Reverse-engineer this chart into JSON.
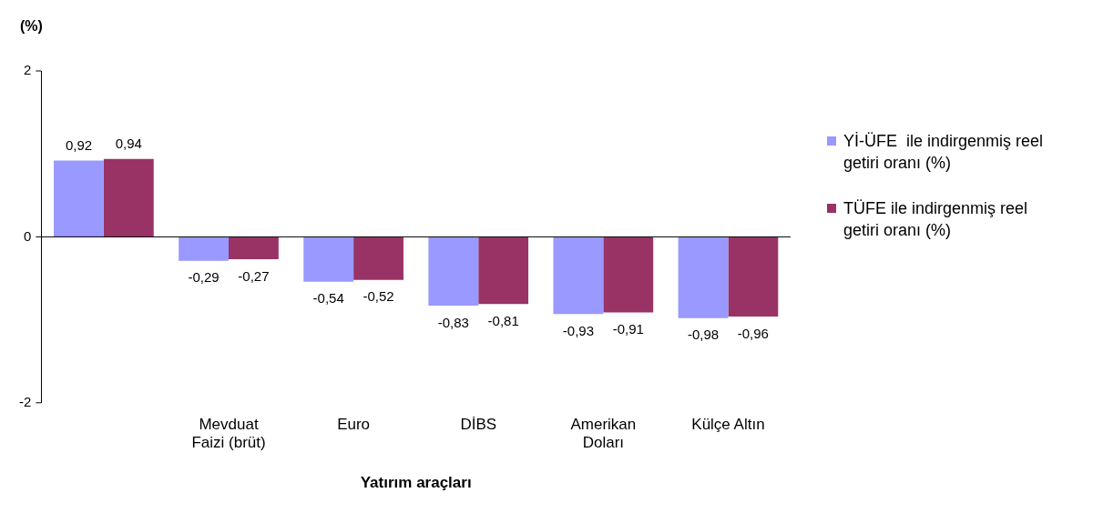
{
  "chart_data": {
    "type": "bar",
    "ylabel": "(%)",
    "xlabel": "Yatırım araçları",
    "categories": [
      null,
      "Mevduat Faizi (brüt)",
      "Euro",
      "DİBS",
      "Amerikan Doları",
      "Külçe Altın"
    ],
    "series": [
      {
        "name": "Yİ-ÜFE  ile indirgenmiş reel getiri oranı (%)",
        "color": "#9999ff",
        "values": [
          0.92,
          -0.29,
          -0.54,
          -0.83,
          -0.93,
          -0.98
        ],
        "value_labels": [
          "0,92",
          "-0,29",
          "-0,54",
          "-0,83",
          "-0,93",
          "-0,98"
        ]
      },
      {
        "name": "TÜFE ile indirgenmiş reel getiri oranı (%)",
        "color": "#993366",
        "values": [
          0.94,
          -0.27,
          -0.52,
          -0.81,
          -0.91,
          -0.96
        ],
        "value_labels": [
          "0,94",
          "-0,27",
          "-0,52",
          "-0,81",
          "-0,91",
          "-0,96"
        ]
      }
    ],
    "ylim": [
      -2,
      2
    ],
    "yticks": [
      -2,
      0,
      2
    ],
    "legend": "right"
  }
}
